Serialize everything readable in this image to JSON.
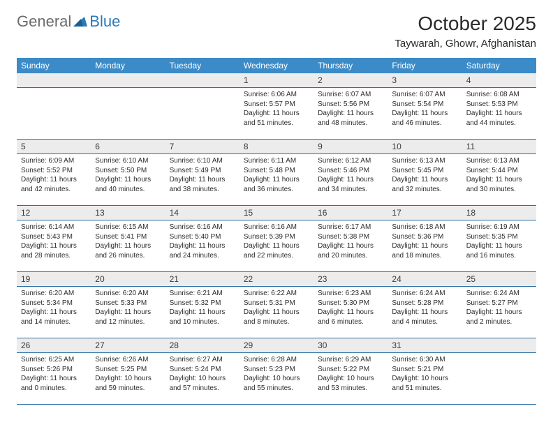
{
  "logo": {
    "text1": "General",
    "text2": "Blue"
  },
  "title": "October 2025",
  "location": "Taywarah, Ghowr, Afghanistan",
  "colors": {
    "header_bg": "#3b8bc8",
    "header_text": "#ffffff",
    "daynum_bg": "#ececec",
    "rule": "#2a6fa5",
    "logo_gray": "#6b6b6b",
    "logo_blue": "#2a7ab9"
  },
  "dow": [
    "Sunday",
    "Monday",
    "Tuesday",
    "Wednesday",
    "Thursday",
    "Friday",
    "Saturday"
  ],
  "weeks": [
    [
      {
        "n": "",
        "sr": "",
        "ss": "",
        "dl": ""
      },
      {
        "n": "",
        "sr": "",
        "ss": "",
        "dl": ""
      },
      {
        "n": "",
        "sr": "",
        "ss": "",
        "dl": ""
      },
      {
        "n": "1",
        "sr": "Sunrise: 6:06 AM",
        "ss": "Sunset: 5:57 PM",
        "dl": "Daylight: 11 hours and 51 minutes."
      },
      {
        "n": "2",
        "sr": "Sunrise: 6:07 AM",
        "ss": "Sunset: 5:56 PM",
        "dl": "Daylight: 11 hours and 48 minutes."
      },
      {
        "n": "3",
        "sr": "Sunrise: 6:07 AM",
        "ss": "Sunset: 5:54 PM",
        "dl": "Daylight: 11 hours and 46 minutes."
      },
      {
        "n": "4",
        "sr": "Sunrise: 6:08 AM",
        "ss": "Sunset: 5:53 PM",
        "dl": "Daylight: 11 hours and 44 minutes."
      }
    ],
    [
      {
        "n": "5",
        "sr": "Sunrise: 6:09 AM",
        "ss": "Sunset: 5:52 PM",
        "dl": "Daylight: 11 hours and 42 minutes."
      },
      {
        "n": "6",
        "sr": "Sunrise: 6:10 AM",
        "ss": "Sunset: 5:50 PM",
        "dl": "Daylight: 11 hours and 40 minutes."
      },
      {
        "n": "7",
        "sr": "Sunrise: 6:10 AM",
        "ss": "Sunset: 5:49 PM",
        "dl": "Daylight: 11 hours and 38 minutes."
      },
      {
        "n": "8",
        "sr": "Sunrise: 6:11 AM",
        "ss": "Sunset: 5:48 PM",
        "dl": "Daylight: 11 hours and 36 minutes."
      },
      {
        "n": "9",
        "sr": "Sunrise: 6:12 AM",
        "ss": "Sunset: 5:46 PM",
        "dl": "Daylight: 11 hours and 34 minutes."
      },
      {
        "n": "10",
        "sr": "Sunrise: 6:13 AM",
        "ss": "Sunset: 5:45 PM",
        "dl": "Daylight: 11 hours and 32 minutes."
      },
      {
        "n": "11",
        "sr": "Sunrise: 6:13 AM",
        "ss": "Sunset: 5:44 PM",
        "dl": "Daylight: 11 hours and 30 minutes."
      }
    ],
    [
      {
        "n": "12",
        "sr": "Sunrise: 6:14 AM",
        "ss": "Sunset: 5:43 PM",
        "dl": "Daylight: 11 hours and 28 minutes."
      },
      {
        "n": "13",
        "sr": "Sunrise: 6:15 AM",
        "ss": "Sunset: 5:41 PM",
        "dl": "Daylight: 11 hours and 26 minutes."
      },
      {
        "n": "14",
        "sr": "Sunrise: 6:16 AM",
        "ss": "Sunset: 5:40 PM",
        "dl": "Daylight: 11 hours and 24 minutes."
      },
      {
        "n": "15",
        "sr": "Sunrise: 6:16 AM",
        "ss": "Sunset: 5:39 PM",
        "dl": "Daylight: 11 hours and 22 minutes."
      },
      {
        "n": "16",
        "sr": "Sunrise: 6:17 AM",
        "ss": "Sunset: 5:38 PM",
        "dl": "Daylight: 11 hours and 20 minutes."
      },
      {
        "n": "17",
        "sr": "Sunrise: 6:18 AM",
        "ss": "Sunset: 5:36 PM",
        "dl": "Daylight: 11 hours and 18 minutes."
      },
      {
        "n": "18",
        "sr": "Sunrise: 6:19 AM",
        "ss": "Sunset: 5:35 PM",
        "dl": "Daylight: 11 hours and 16 minutes."
      }
    ],
    [
      {
        "n": "19",
        "sr": "Sunrise: 6:20 AM",
        "ss": "Sunset: 5:34 PM",
        "dl": "Daylight: 11 hours and 14 minutes."
      },
      {
        "n": "20",
        "sr": "Sunrise: 6:20 AM",
        "ss": "Sunset: 5:33 PM",
        "dl": "Daylight: 11 hours and 12 minutes."
      },
      {
        "n": "21",
        "sr": "Sunrise: 6:21 AM",
        "ss": "Sunset: 5:32 PM",
        "dl": "Daylight: 11 hours and 10 minutes."
      },
      {
        "n": "22",
        "sr": "Sunrise: 6:22 AM",
        "ss": "Sunset: 5:31 PM",
        "dl": "Daylight: 11 hours and 8 minutes."
      },
      {
        "n": "23",
        "sr": "Sunrise: 6:23 AM",
        "ss": "Sunset: 5:30 PM",
        "dl": "Daylight: 11 hours and 6 minutes."
      },
      {
        "n": "24",
        "sr": "Sunrise: 6:24 AM",
        "ss": "Sunset: 5:28 PM",
        "dl": "Daylight: 11 hours and 4 minutes."
      },
      {
        "n": "25",
        "sr": "Sunrise: 6:24 AM",
        "ss": "Sunset: 5:27 PM",
        "dl": "Daylight: 11 hours and 2 minutes."
      }
    ],
    [
      {
        "n": "26",
        "sr": "Sunrise: 6:25 AM",
        "ss": "Sunset: 5:26 PM",
        "dl": "Daylight: 11 hours and 0 minutes."
      },
      {
        "n": "27",
        "sr": "Sunrise: 6:26 AM",
        "ss": "Sunset: 5:25 PM",
        "dl": "Daylight: 10 hours and 59 minutes."
      },
      {
        "n": "28",
        "sr": "Sunrise: 6:27 AM",
        "ss": "Sunset: 5:24 PM",
        "dl": "Daylight: 10 hours and 57 minutes."
      },
      {
        "n": "29",
        "sr": "Sunrise: 6:28 AM",
        "ss": "Sunset: 5:23 PM",
        "dl": "Daylight: 10 hours and 55 minutes."
      },
      {
        "n": "30",
        "sr": "Sunrise: 6:29 AM",
        "ss": "Sunset: 5:22 PM",
        "dl": "Daylight: 10 hours and 53 minutes."
      },
      {
        "n": "31",
        "sr": "Sunrise: 6:30 AM",
        "ss": "Sunset: 5:21 PM",
        "dl": "Daylight: 10 hours and 51 minutes."
      },
      {
        "n": "",
        "sr": "",
        "ss": "",
        "dl": ""
      }
    ]
  ]
}
